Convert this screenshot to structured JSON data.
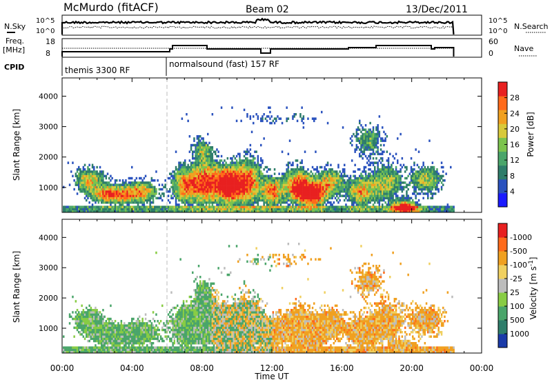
{
  "header": {
    "station": "McMurdo (fitACF)",
    "beam": "Beam 02",
    "date": "13/Dec/2011"
  },
  "panels": {
    "noise": {
      "left_label": "N.Sky",
      "right_label": "N.Search",
      "left_ticks": [
        "10^5",
        "10^0"
      ],
      "right_ticks": [
        "10^5",
        "10^0"
      ]
    },
    "freq": {
      "left_label_1": "Freq.",
      "left_label_2": "[MHz]",
      "left_ticks": [
        "18",
        "8"
      ],
      "right_ticks": [
        "60",
        "0"
      ],
      "right_label": "Nave"
    },
    "cpid": {
      "label": "CPID",
      "segments": [
        {
          "name": "themis 3300 RF",
          "start_hour": 0
        },
        {
          "name": "normalsound (fast) 157 RF",
          "start_hour": 6
        }
      ]
    }
  },
  "chart_data": [
    {
      "type": "heatmap",
      "name": "power",
      "ylabel": "Slant Range [km]",
      "xlabel": "",
      "x_ticks": [
        "00:00",
        "04:00",
        "08:00",
        "12:00",
        "16:00",
        "20:00",
        "00:00"
      ],
      "x_range_hours": [
        0,
        24
      ],
      "ylim": [
        180,
        4600
      ],
      "y_ticks": [
        1000,
        2000,
        3000,
        4000
      ],
      "colorbar": {
        "label": "Power [dB]",
        "ticks": [
          "4",
          "8",
          "12",
          "16",
          "20",
          "24",
          "28"
        ],
        "colors": [
          "#1a1aff",
          "#2a52be",
          "#2e7d6a",
          "#4aa56a",
          "#7cc34e",
          "#d8c93a",
          "#f0a020",
          "#ff6a1a",
          "#e82020"
        ]
      },
      "data_end_hour": 22.4
    },
    {
      "type": "heatmap",
      "name": "velocity",
      "ylabel": "Slant Range [km]",
      "xlabel": "Time UT",
      "x_ticks": [
        "00:00",
        "04:00",
        "08:00",
        "12:00",
        "16:00",
        "20:00",
        "00:00"
      ],
      "x_range_hours": [
        0,
        24
      ],
      "ylim": [
        180,
        4600
      ],
      "y_ticks": [
        1000,
        2000,
        3000,
        4000
      ],
      "colorbar": {
        "label": "Velocity [m s^-1]",
        "ticks": [
          "1000",
          "500",
          "100",
          "25",
          "-25",
          "-100",
          "-500",
          "-1000"
        ],
        "colors": [
          "#1a3aa8",
          "#2e7d6a",
          "#4aa56a",
          "#88cc44",
          "#bcbcbc",
          "#f0d060",
          "#f0a020",
          "#ff6a1a",
          "#e82020"
        ]
      },
      "data_end_hour": 22.4
    }
  ]
}
